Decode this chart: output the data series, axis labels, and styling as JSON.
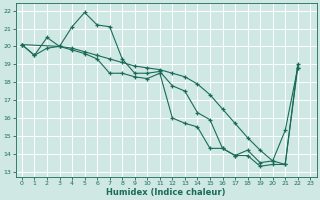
{
  "xlabel": "Humidex (Indice chaleur)",
  "bg_color": "#cfe8e4",
  "grid_color": "#ffffff",
  "line_color": "#1a6b5a",
  "xlim": [
    -0.5,
    23.5
  ],
  "ylim": [
    12.7,
    22.4
  ],
  "yticks": [
    13,
    14,
    15,
    16,
    17,
    18,
    19,
    20,
    21,
    22
  ],
  "xticks": [
    0,
    1,
    2,
    3,
    4,
    5,
    6,
    7,
    8,
    9,
    10,
    11,
    12,
    13,
    14,
    15,
    16,
    17,
    18,
    19,
    20,
    21,
    22,
    23
  ],
  "line1_x": [
    0,
    1,
    2,
    3,
    4,
    5,
    6,
    7,
    8,
    9,
    10,
    11,
    12,
    13,
    14,
    15,
    16,
    17,
    18,
    19,
    20,
    21,
    22
  ],
  "line1_y": [
    20.1,
    19.5,
    20.5,
    20.0,
    21.1,
    21.9,
    21.2,
    21.1,
    19.3,
    18.5,
    18.5,
    18.6,
    17.8,
    17.5,
    16.3,
    15.9,
    14.3,
    13.9,
    13.9,
    13.3,
    13.4,
    13.4,
    18.8
  ],
  "line2_x": [
    0,
    3,
    4,
    5,
    6,
    7,
    8,
    9,
    10,
    11,
    12,
    13,
    14,
    15,
    16,
    17,
    18,
    19,
    20,
    21,
    22
  ],
  "line2_y": [
    20.1,
    20.0,
    19.9,
    19.7,
    19.5,
    19.3,
    19.1,
    18.9,
    18.8,
    18.7,
    18.5,
    18.3,
    17.9,
    17.3,
    16.5,
    15.7,
    14.9,
    14.2,
    13.6,
    13.4,
    19.0
  ],
  "line3_x": [
    0,
    1,
    2,
    3,
    4,
    5,
    6,
    7,
    8,
    9,
    10,
    11,
    12,
    13,
    14,
    15,
    16,
    17,
    18,
    19,
    20,
    21,
    22
  ],
  "line3_y": [
    20.1,
    19.5,
    19.9,
    20.0,
    19.8,
    19.6,
    19.3,
    18.5,
    18.5,
    18.3,
    18.2,
    18.5,
    16.0,
    15.7,
    15.5,
    14.3,
    14.3,
    13.9,
    14.2,
    13.5,
    13.6,
    15.3,
    18.8
  ]
}
